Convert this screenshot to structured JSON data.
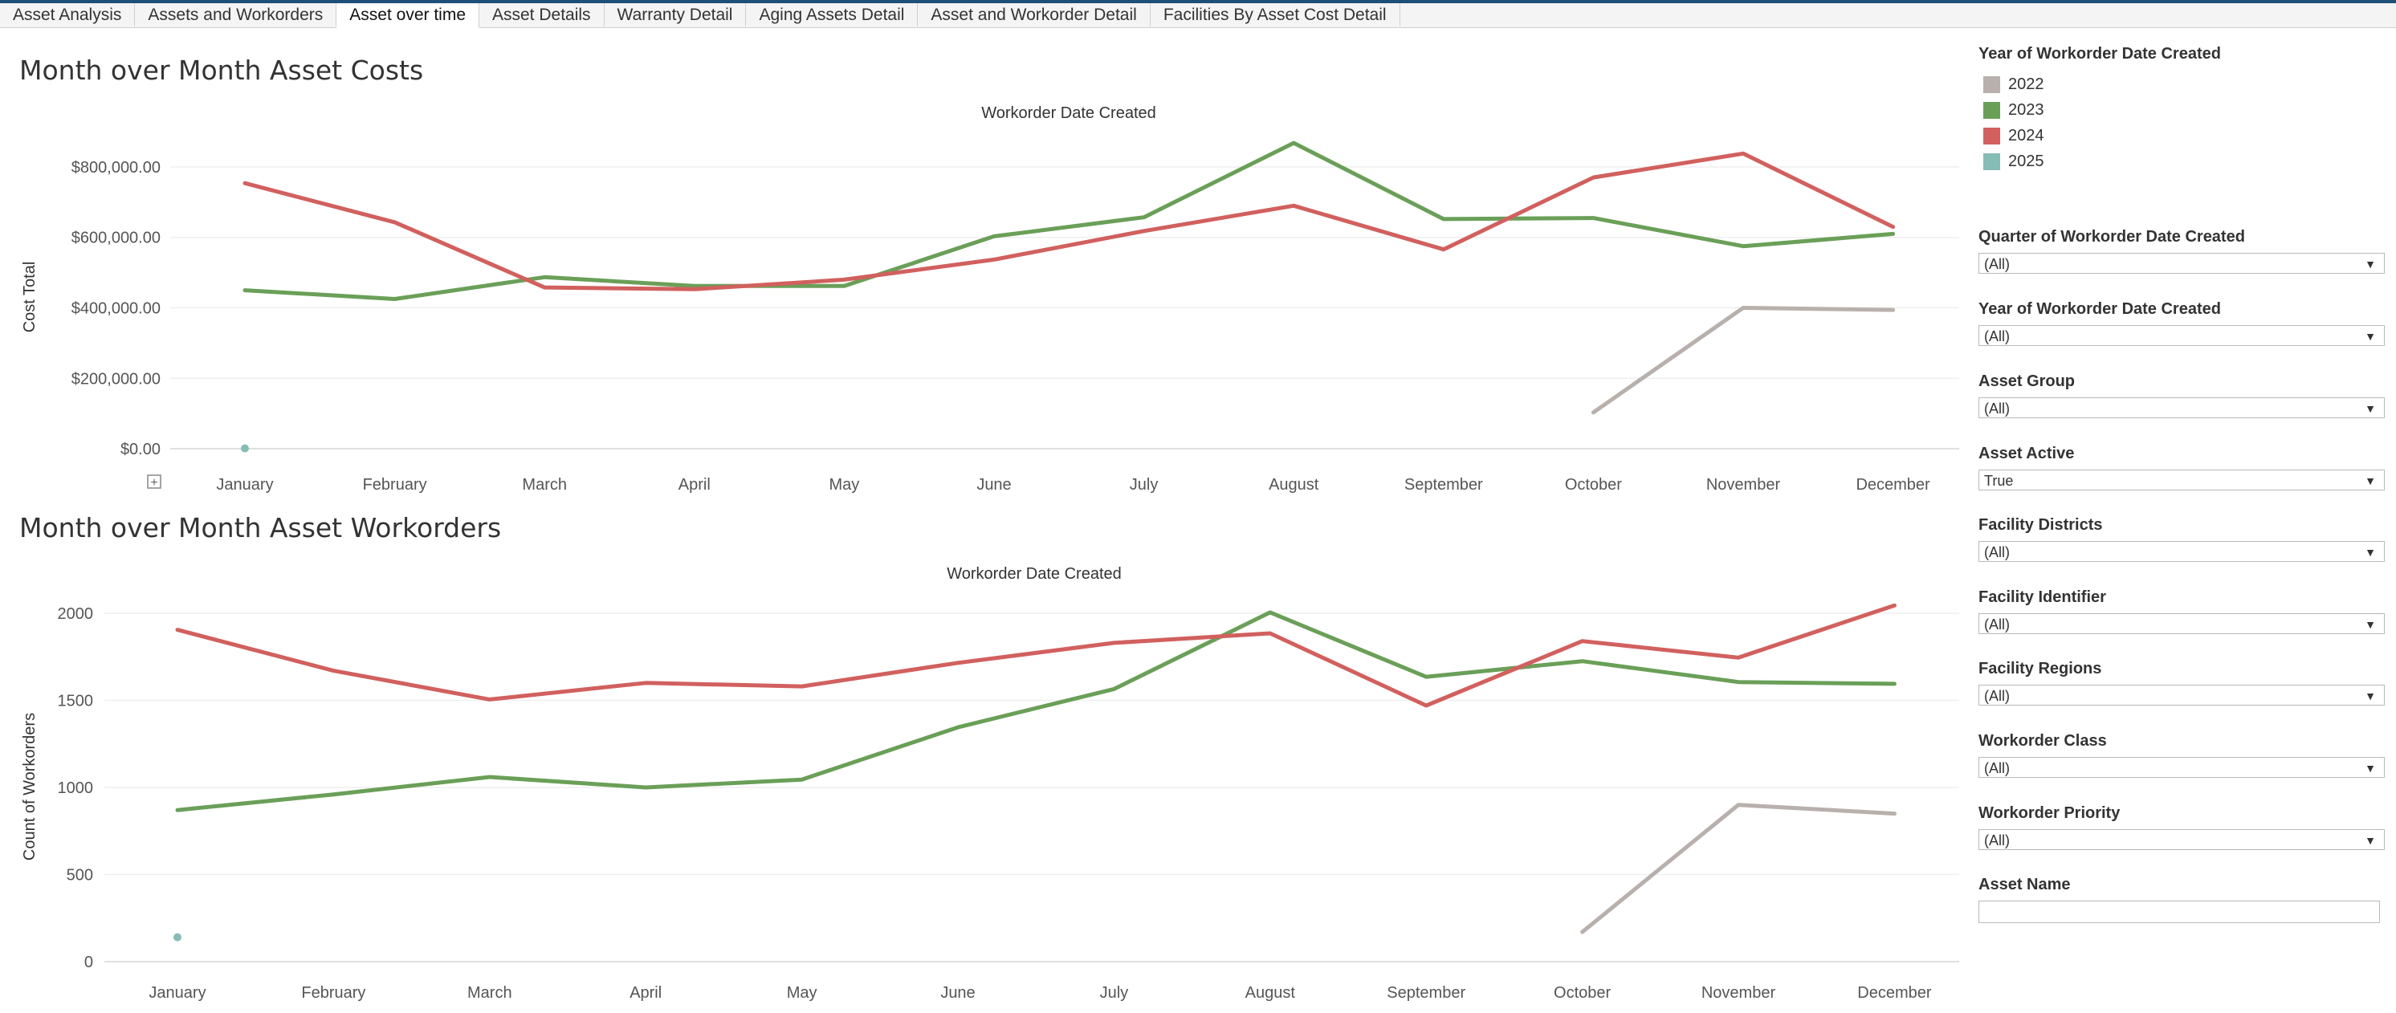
{
  "tabs": [
    "Asset Analysis",
    "Assets and Workorders",
    "Asset over time",
    "Asset Details",
    "Warranty Detail",
    "Aging Assets Detail",
    "Asset and Workorder Detail",
    "Facilities By Asset Cost Detail"
  ],
  "active_tab": 2,
  "colors": {
    "2022": "#b8b0ac",
    "2023": "#6a9f58",
    "2024": "#d1605e",
    "2025": "#86bcb6"
  },
  "chart_data": [
    {
      "type": "line",
      "title": "Month over Month Asset Costs",
      "subtitle": "Workorder Date Created",
      "ylabel": "Cost Total",
      "categories": [
        "January",
        "February",
        "March",
        "April",
        "May",
        "June",
        "July",
        "August",
        "September",
        "October",
        "November",
        "December"
      ],
      "ylim": [
        -22000,
        900000
      ],
      "yticks": [
        0,
        200000,
        400000,
        600000,
        800000
      ],
      "ytick_labels": [
        "$0.00",
        "$200,000.00",
        "$400,000.00",
        "$600,000.00",
        "$800,000.00"
      ],
      "series": [
        {
          "name": "2022",
          "values": [
            null,
            null,
            null,
            null,
            null,
            null,
            null,
            null,
            null,
            103000,
            400000,
            394000
          ]
        },
        {
          "name": "2023",
          "values": [
            450000,
            425000,
            487000,
            462000,
            462000,
            603000,
            657000,
            868000,
            652000,
            655000,
            575000,
            610000
          ]
        },
        {
          "name": "2024",
          "values": [
            754000,
            643000,
            458000,
            453000,
            480000,
            537000,
            618000,
            690000,
            566000,
            770000,
            838000,
            630000
          ]
        },
        {
          "name": "2025",
          "values": [
            1000,
            null,
            null,
            null,
            null,
            null,
            null,
            null,
            null,
            null,
            null,
            null
          ]
        }
      ],
      "grid": true
    },
    {
      "type": "line",
      "title": "Month over Month Asset Workorders",
      "subtitle": "Workorder Date Created",
      "ylabel": "Count of Workorders",
      "categories": [
        "January",
        "February",
        "March",
        "April",
        "May",
        "June",
        "July",
        "August",
        "September",
        "October",
        "November",
        "December"
      ],
      "ylim": [
        -70,
        2150
      ],
      "yticks": [
        0,
        500,
        1000,
        1500,
        2000
      ],
      "ytick_labels": [
        "0",
        "500",
        "1000",
        "1500",
        "2000"
      ],
      "series": [
        {
          "name": "2022",
          "values": [
            null,
            null,
            null,
            null,
            null,
            null,
            null,
            null,
            null,
            170,
            900,
            850
          ]
        },
        {
          "name": "2023",
          "values": [
            870,
            960,
            1060,
            1000,
            1045,
            1345,
            1565,
            2005,
            1635,
            1725,
            1605,
            1595
          ]
        },
        {
          "name": "2024",
          "values": [
            1905,
            1670,
            1505,
            1600,
            1580,
            1715,
            1830,
            1885,
            1470,
            1840,
            1745,
            2045
          ]
        },
        {
          "name": "2025",
          "values": [
            140,
            null,
            null,
            null,
            null,
            null,
            null,
            null,
            null,
            null,
            null,
            null
          ]
        }
      ],
      "grid": true
    }
  ],
  "legend": {
    "title": "Year of Workorder Date Created",
    "items": [
      "2022",
      "2023",
      "2024",
      "2025"
    ]
  },
  "filters": [
    {
      "label": "Quarter of Workorder Date Created",
      "value": "(All)"
    },
    {
      "label": "Year of Workorder Date Created",
      "value": "(All)"
    },
    {
      "label": "Asset Group",
      "value": "(All)"
    },
    {
      "label": "Asset Active",
      "value": "True"
    },
    {
      "label": "Facility Districts",
      "value": "(All)"
    },
    {
      "label": "Facility Identifier",
      "value": "(All)"
    },
    {
      "label": "Facility Regions",
      "value": "(All)"
    },
    {
      "label": "Workorder Class",
      "value": "(All)"
    },
    {
      "label": "Workorder Priority",
      "value": "(All)"
    }
  ],
  "search_filter": {
    "label": "Asset Name",
    "value": ""
  }
}
